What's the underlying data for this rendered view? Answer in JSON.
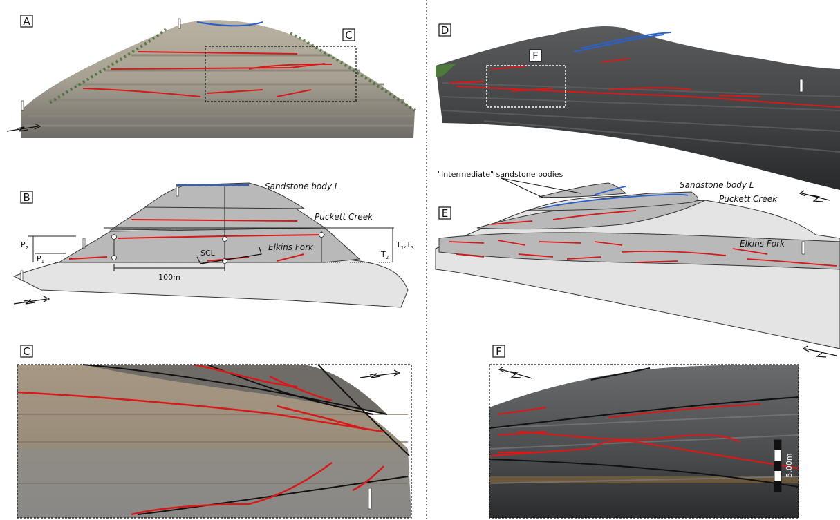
{
  "panels": {
    "a": "A",
    "b": "B",
    "c": "C",
    "d": "D",
    "e": "E",
    "f": "F",
    "inset_c": "C",
    "inset_f": "F"
  },
  "labels": {
    "sandstone_body_b": "Sandstone body L",
    "puckett_b": "Puckett Creek",
    "elkins_b": "Elkins Fork",
    "scl": "SCL",
    "scale": "100m",
    "p2": "P",
    "p2_sub": "2",
    "p1": "P",
    "p1_sub": "1",
    "t2": "T",
    "t2_sub": "2",
    "t13_t": "T",
    "t13_sub1": "1",
    "t13_comma": ",T",
    "t13_sub3": "3",
    "intermediate": "\"Intermediate\" sandstone bodies",
    "sandstone_body_e": "Sandstone body L",
    "puckett_e": "Puckett Creek",
    "elkins_e": "Elkins Fork",
    "scale_bar": "5.00m"
  },
  "colors": {
    "channel_red": "#d61a1a",
    "sandstone_blue": "#2a62c9",
    "unit_grey": "#b9b9b9",
    "background_grey": "#e4e4e4"
  }
}
